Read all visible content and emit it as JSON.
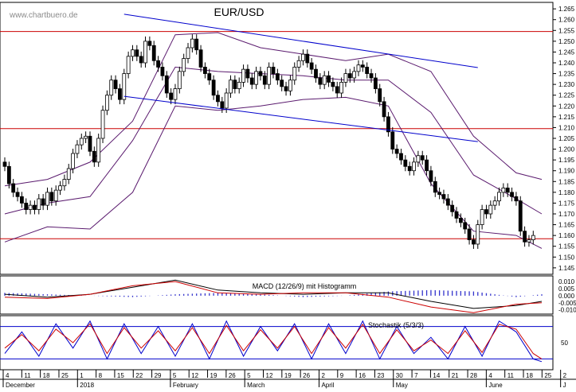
{
  "chart_data": [
    {
      "type": "candlestick",
      "title": "EUR/USD",
      "watermark": "www.chartbuero.de",
      "ylim": [
        1.142,
        1.268
      ],
      "yticks": [
        1.145,
        1.15,
        1.155,
        1.16,
        1.165,
        1.17,
        1.175,
        1.18,
        1.185,
        1.19,
        1.195,
        1.2,
        1.205,
        1.21,
        1.215,
        1.22,
        1.225,
        1.23,
        1.235,
        1.24,
        1.245,
        1.25,
        1.255,
        1.26,
        1.265
      ],
      "ytick_labels": [
        "1.145",
        "1.150",
        "1.155",
        "1.160",
        "1.165",
        "1.170",
        "1.175",
        "1.180",
        "1.185",
        "1.190",
        "1.195",
        "1.200",
        "1.205",
        "1.210",
        "1.215",
        "1.220",
        "1.225",
        "1.230",
        "1.235",
        "1.240",
        "1.245",
        "1.250",
        "1.255",
        "1.260",
        "1.265"
      ],
      "horizontal_lines": [
        1.2545,
        1.2095,
        1.1585
      ],
      "trendlines": [
        {
          "from": {
            "x": 28,
            "y": 1.2625
          },
          "to": {
            "x": 111,
            "y": 1.2378
          }
        },
        {
          "from": {
            "x": 28,
            "y": 1.2245
          },
          "to": {
            "x": 111,
            "y": 1.2035
          }
        }
      ],
      "close_series": [
        1.192,
        1.184,
        1.18,
        1.178,
        1.175,
        1.172,
        1.174,
        1.172,
        1.177,
        1.174,
        1.18,
        1.176,
        1.181,
        1.183,
        1.186,
        1.191,
        1.198,
        1.202,
        1.205,
        1.206,
        1.199,
        1.194,
        1.205,
        1.218,
        1.225,
        1.232,
        1.228,
        1.223,
        1.235,
        1.243,
        1.246,
        1.243,
        1.24,
        1.25,
        1.248,
        1.241,
        1.238,
        1.234,
        1.226,
        1.223,
        1.228,
        1.236,
        1.242,
        1.247,
        1.251,
        1.246,
        1.238,
        1.235,
        1.232,
        1.225,
        1.222,
        1.219,
        1.226,
        1.232,
        1.228,
        1.231,
        1.237,
        1.233,
        1.23,
        1.236,
        1.234,
        1.23,
        1.238,
        1.235,
        1.232,
        1.229,
        1.227,
        1.232,
        1.238,
        1.241,
        1.244,
        1.24,
        1.237,
        1.233,
        1.23,
        1.234,
        1.231,
        1.229,
        1.226,
        1.231,
        1.235,
        1.233,
        1.236,
        1.239,
        1.238,
        1.235,
        1.233,
        1.228,
        1.222,
        1.215,
        1.208,
        1.2,
        1.198,
        1.195,
        1.192,
        1.19,
        1.194,
        1.197,
        1.195,
        1.19,
        1.185,
        1.18,
        1.179,
        1.177,
        1.174,
        1.171,
        1.168,
        1.166,
        1.163,
        1.158,
        1.156,
        1.165,
        1.172,
        1.17,
        1.174,
        1.176,
        1.18,
        1.182,
        1.18,
        1.178,
        1.176,
        1.162,
        1.157,
        1.158,
        1.16
      ],
      "bollinger": {
        "upper": {
          "x": [
            0,
            10,
            20,
            30,
            40,
            50,
            60,
            70,
            80,
            90,
            100,
            110,
            120,
            126
          ],
          "y": [
            1.183,
            1.186,
            1.194,
            1.213,
            1.253,
            1.254,
            1.247,
            1.244,
            1.241,
            1.244,
            1.236,
            1.206,
            1.189,
            1.186
          ]
        },
        "middle": {
          "x": [
            0,
            10,
            20,
            30,
            40,
            50,
            60,
            70,
            80,
            90,
            100,
            110,
            120,
            126
          ],
          "y": [
            1.17,
            1.175,
            1.178,
            1.204,
            1.238,
            1.236,
            1.235,
            1.234,
            1.232,
            1.232,
            1.217,
            1.188,
            1.177,
            1.17
          ]
        },
        "lower": {
          "x": [
            0,
            10,
            20,
            30,
            40,
            50,
            60,
            70,
            80,
            90,
            100,
            110,
            120,
            126
          ],
          "y": [
            1.157,
            1.164,
            1.163,
            1.18,
            1.22,
            1.218,
            1.22,
            1.223,
            1.224,
            1.22,
            1.184,
            1.162,
            1.16,
            1.154
          ]
        }
      }
    },
    {
      "type": "line",
      "title": "MACD (12/26/9) mit Histogramm",
      "ylim": [
        -0.013,
        0.014
      ],
      "yticks": [
        0.01,
        0.005,
        0.0,
        -0.005,
        -0.01
      ],
      "ytick_labels": [
        "0.010",
        "0.005",
        "0.000",
        "-0.005",
        "-0.010"
      ],
      "series": [
        {
          "color": "#000000",
          "x": [
            0,
            10,
            20,
            30,
            40,
            50,
            60,
            70,
            80,
            90,
            100,
            110,
            120,
            126
          ],
          "y": [
            0.001,
            -0.001,
            0.001,
            0.006,
            0.011,
            0.004,
            0.002,
            0.001,
            0.002,
            0.002,
            -0.004,
            -0.009,
            -0.007,
            -0.004
          ]
        },
        {
          "color": "#cc0000",
          "x": [
            0,
            10,
            20,
            30,
            40,
            50,
            60,
            70,
            80,
            90,
            100,
            110,
            120,
            126
          ],
          "y": [
            -0.001,
            -0.002,
            0.001,
            0.007,
            0.01,
            0.002,
            0.001,
            0.002,
            0.002,
            -0.001,
            -0.008,
            -0.012,
            -0.006,
            -0.005
          ]
        }
      ]
    },
    {
      "type": "line",
      "title": "Stochastik (5/3/3)",
      "ylim": [
        0,
        100
      ],
      "yticks": [
        50
      ],
      "ytick_labels": [
        "50"
      ],
      "reference_lines": [
        80,
        20
      ],
      "series": [
        {
          "color": "#0000cc",
          "name_hidden": true,
          "x": [
            0,
            4,
            8,
            12,
            16,
            20,
            24,
            28,
            32,
            36,
            40,
            44,
            48,
            52,
            56,
            60,
            64,
            68,
            72,
            76,
            80,
            84,
            88,
            92,
            96,
            100,
            104,
            108,
            112,
            116,
            120,
            124,
            126
          ],
          "y": [
            30,
            70,
            25,
            85,
            40,
            90,
            20,
            85,
            30,
            80,
            25,
            85,
            20,
            90,
            25,
            80,
            35,
            85,
            20,
            85,
            30,
            90,
            20,
            80,
            30,
            60,
            20,
            80,
            25,
            90,
            70,
            20,
            15
          ]
        },
        {
          "color": "#cc0000",
          "name_hidden": true,
          "x": [
            0,
            4,
            8,
            12,
            16,
            20,
            24,
            28,
            32,
            36,
            40,
            44,
            48,
            52,
            56,
            60,
            64,
            68,
            72,
            76,
            80,
            84,
            88,
            92,
            96,
            100,
            104,
            108,
            112,
            116,
            120,
            124,
            126
          ],
          "y": [
            40,
            65,
            35,
            75,
            50,
            85,
            30,
            78,
            40,
            72,
            35,
            78,
            30,
            82,
            35,
            74,
            40,
            80,
            30,
            78,
            40,
            84,
            30,
            74,
            35,
            55,
            30,
            72,
            32,
            84,
            75,
            30,
            20
          ]
        }
      ]
    }
  ],
  "x_axis": {
    "day_ticks": [
      "4",
      "11",
      "18",
      "25",
      "1",
      "8",
      "15",
      "22",
      "29",
      "5",
      "12",
      "19",
      "26",
      "5",
      "12",
      "19",
      "26",
      "2",
      "9",
      "16",
      "23",
      "30",
      "7",
      "14",
      "21",
      "28",
      "4",
      "11",
      "18",
      "25",
      "2"
    ],
    "months": [
      "December",
      "2018",
      "February",
      "March",
      "April",
      "May",
      "June",
      "J"
    ]
  },
  "colors": {
    "bull": "#ffffff",
    "bear": "#000000",
    "hline": "#cc0000",
    "trend": "#0000cc",
    "band": "#5a1a6e",
    "grid": "#000000"
  }
}
